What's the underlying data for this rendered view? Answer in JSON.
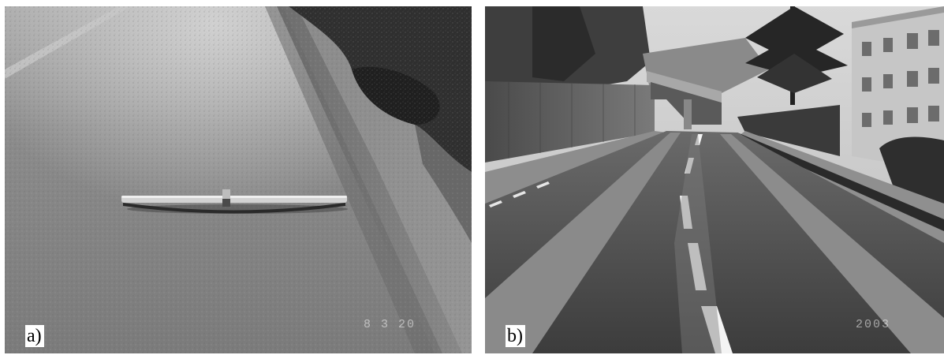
{
  "figure": {
    "panels": [
      {
        "label": "a)",
        "date_stamp": "8  3 20",
        "content": "asphalt-road-with-metal-straightedge-bar"
      },
      {
        "label": "b)",
        "date_stamp": "2003",
        "content": "curving-road-with-bike-lanes-and-bridge"
      }
    ]
  }
}
